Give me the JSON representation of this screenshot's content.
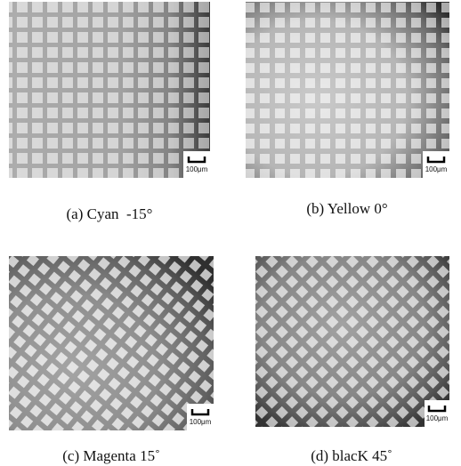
{
  "panels": [
    {
      "caption": "(a) Cyan  -15°",
      "scale_label": "100μm"
    },
    {
      "caption": "(b) Yellow 0°",
      "scale_label": "100μm"
    },
    {
      "caption": "(c) Magenta 15˚",
      "scale_label": "100μm"
    },
    {
      "caption": "(d) blacK 45˚",
      "scale_label": "100μm"
    }
  ]
}
